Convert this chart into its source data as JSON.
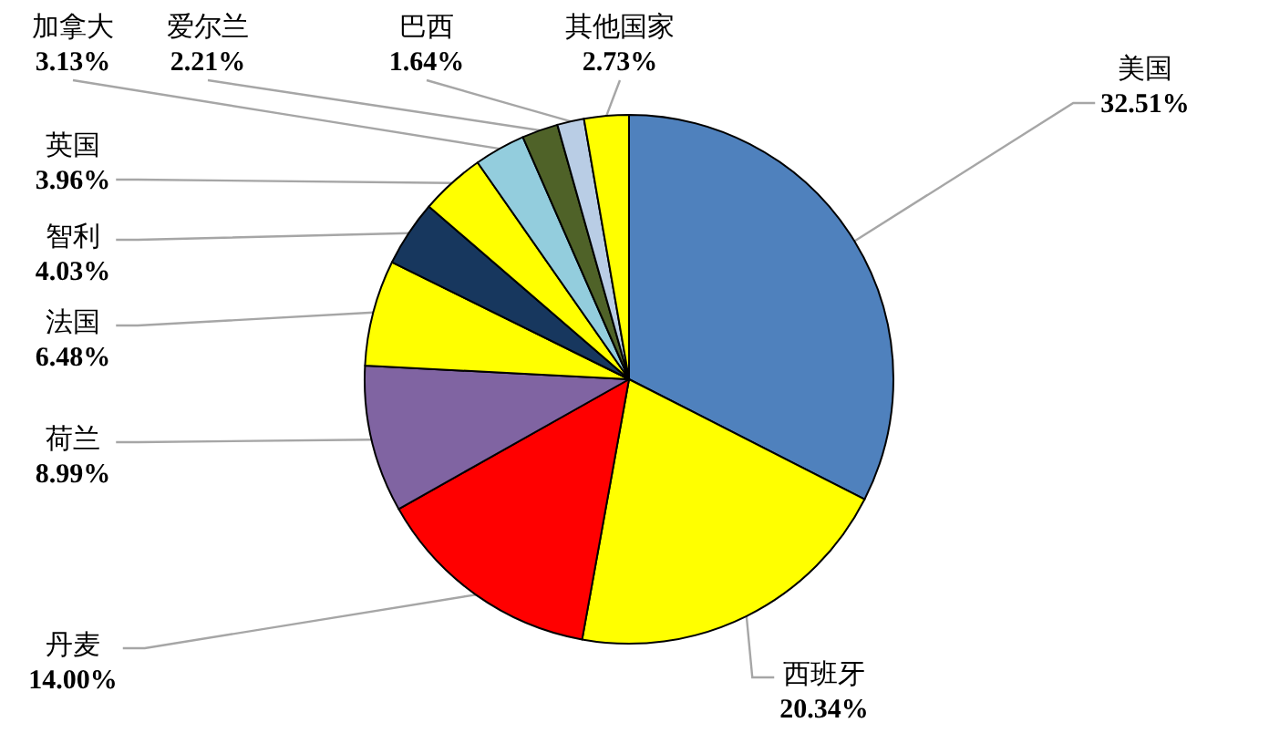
{
  "chart_data": {
    "type": "pie",
    "categories": [
      "美国",
      "西班牙",
      "丹麦",
      "荷兰",
      "法国",
      "智利",
      "英国",
      "加拿大",
      "爱尔兰",
      "巴西",
      "其他国家"
    ],
    "values": [
      32.51,
      20.34,
      14.0,
      8.99,
      6.48,
      4.03,
      3.96,
      3.13,
      2.21,
      1.64,
      2.73
    ],
    "value_labels": [
      "32.51%",
      "20.34%",
      "14.00%",
      "8.99%",
      "6.48%",
      "4.03%",
      "3.96%",
      "3.13%",
      "2.21%",
      "1.64%",
      "2.73%"
    ],
    "colors": [
      "#4f81bd",
      "#ffff00",
      "#ff0000",
      "#8064a2",
      "#ffff00",
      "#17375e",
      "#ffff00",
      "#93cddd",
      "#4f6228",
      "#b9cde5",
      "#ffff00"
    ]
  }
}
